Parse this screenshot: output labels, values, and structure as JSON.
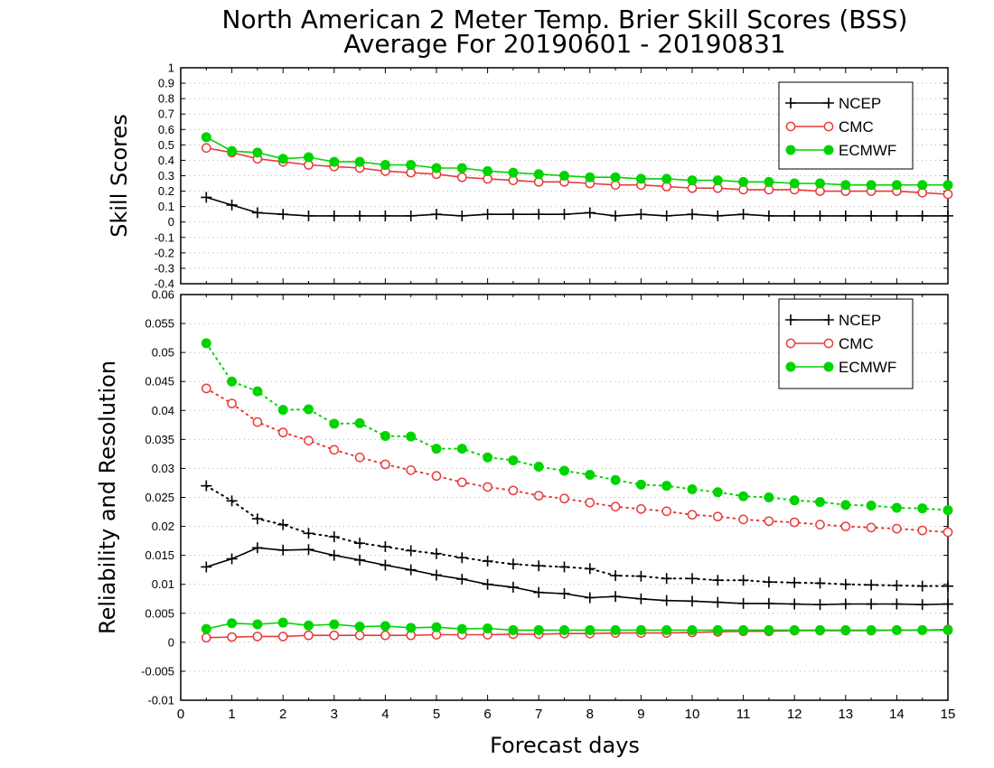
{
  "title_line1": "North American 2 Meter Temp. Brier Skill Scores (BSS)",
  "title_line2": "Average For 20190601 - 20190831",
  "xlabel": "Forecast days",
  "colors": {
    "NCEP": "#000000",
    "CMC": "#e83b3b",
    "ECMWF": "#00d400"
  },
  "chart_data": [
    {
      "type": "line",
      "ylabel": "Skill Scores",
      "xlim": [
        0,
        15
      ],
      "ylim": [
        -0.4,
        1
      ],
      "yticks": [
        "-0.4",
        "-0.3",
        "-0.2",
        "-0.1",
        "0",
        "0.1",
        "0.2",
        "0.3",
        "0.4",
        "0.5",
        "0.6",
        "0.7",
        "0.8",
        "0.9",
        "1"
      ],
      "xticks": [
        "0",
        "1",
        "2",
        "3",
        "4",
        "5",
        "6",
        "7",
        "8",
        "9",
        "10",
        "11",
        "12",
        "13",
        "14",
        "15"
      ],
      "grid": true,
      "legend": "top-right",
      "legend_entries": [
        "NCEP",
        "CMC",
        "ECMWF"
      ],
      "x": [
        0.5,
        1,
        1.5,
        2,
        2.5,
        3,
        3.5,
        4,
        4.5,
        5,
        5.5,
        6,
        6.5,
        7,
        7.5,
        8,
        8.5,
        9,
        9.5,
        10,
        10.5,
        11,
        11.5,
        12,
        12.5,
        13,
        13.5,
        14,
        14.5,
        15
      ],
      "series": [
        {
          "name": "NCEP",
          "style": "solid",
          "marker": "plus",
          "values": [
            0.16,
            0.11,
            0.06,
            0.05,
            0.04,
            0.04,
            0.04,
            0.04,
            0.04,
            0.05,
            0.04,
            0.05,
            0.05,
            0.05,
            0.05,
            0.06,
            0.04,
            0.05,
            0.04,
            0.05,
            0.04,
            0.05,
            0.04,
            0.04,
            0.04,
            0.04,
            0.04,
            0.04,
            0.04,
            0.04
          ]
        },
        {
          "name": "CMC",
          "style": "solid",
          "marker": "open-circle",
          "values": [
            0.48,
            0.45,
            0.41,
            0.39,
            0.37,
            0.36,
            0.35,
            0.33,
            0.32,
            0.31,
            0.29,
            0.28,
            0.27,
            0.26,
            0.26,
            0.25,
            0.24,
            0.24,
            0.23,
            0.22,
            0.22,
            0.21,
            0.21,
            0.21,
            0.2,
            0.2,
            0.2,
            0.2,
            0.19,
            0.18
          ]
        },
        {
          "name": "ECMWF",
          "style": "solid",
          "marker": "filled-circle",
          "values": [
            0.55,
            0.46,
            0.45,
            0.41,
            0.42,
            0.39,
            0.39,
            0.37,
            0.37,
            0.35,
            0.35,
            0.33,
            0.32,
            0.31,
            0.3,
            0.29,
            0.29,
            0.28,
            0.28,
            0.27,
            0.27,
            0.26,
            0.26,
            0.25,
            0.25,
            0.24,
            0.24,
            0.24,
            0.24,
            0.24
          ]
        }
      ]
    },
    {
      "type": "line",
      "ylabel": "Reliability and Resolution",
      "xlim": [
        0,
        15
      ],
      "ylim": [
        -0.01,
        0.06
      ],
      "yticks": [
        "-0.01",
        "-0.005",
        "0",
        "0.005",
        "0.01",
        "0.015",
        "0.02",
        "0.025",
        "0.03",
        "0.035",
        "0.04",
        "0.045",
        "0.05",
        "0.055",
        "0.06"
      ],
      "xticks": [
        "0",
        "1",
        "2",
        "3",
        "4",
        "5",
        "6",
        "7",
        "8",
        "9",
        "10",
        "11",
        "12",
        "13",
        "14",
        "15"
      ],
      "grid": true,
      "legend": "top-right",
      "legend_entries": [
        "NCEP",
        "CMC",
        "ECMWF"
      ],
      "x": [
        0.5,
        1,
        1.5,
        2,
        2.5,
        3,
        3.5,
        4,
        4.5,
        5,
        5.5,
        6,
        6.5,
        7,
        7.5,
        8,
        8.5,
        9,
        9.5,
        10,
        10.5,
        11,
        11.5,
        12,
        12.5,
        13,
        13.5,
        14,
        14.5,
        15
      ],
      "series": [
        {
          "name": "NCEP",
          "style": "dotted",
          "marker": "plus",
          "values": [
            0.027,
            0.0244,
            0.0213,
            0.0203,
            0.0188,
            0.0182,
            0.0171,
            0.0165,
            0.0158,
            0.0153,
            0.0146,
            0.014,
            0.0135,
            0.0132,
            0.013,
            0.0127,
            0.0115,
            0.0114,
            0.011,
            0.011,
            0.0107,
            0.0107,
            0.0104,
            0.0103,
            0.0102,
            0.01,
            0.0099,
            0.0098,
            0.0097,
            0.0097
          ]
        },
        {
          "name": "NCEP",
          "style": "solid",
          "marker": "plus",
          "values": [
            0.013,
            0.0144,
            0.0163,
            0.0159,
            0.016,
            0.015,
            0.0142,
            0.0133,
            0.0125,
            0.0116,
            0.0109,
            0.01,
            0.0095,
            0.0086,
            0.0084,
            0.0077,
            0.0079,
            0.0075,
            0.0072,
            0.0071,
            0.0069,
            0.0067,
            0.0067,
            0.0066,
            0.0065,
            0.0066,
            0.0066,
            0.0066,
            0.0065,
            0.0066
          ]
        },
        {
          "name": "CMC",
          "style": "dotted",
          "marker": "open-circle",
          "values": [
            0.0438,
            0.0412,
            0.038,
            0.0362,
            0.0348,
            0.0332,
            0.0319,
            0.0307,
            0.0297,
            0.0287,
            0.0276,
            0.0268,
            0.0262,
            0.0253,
            0.0248,
            0.0241,
            0.0234,
            0.023,
            0.0226,
            0.022,
            0.0217,
            0.0212,
            0.0209,
            0.0207,
            0.0203,
            0.02,
            0.0198,
            0.0196,
            0.0193,
            0.019
          ]
        },
        {
          "name": "CMC",
          "style": "solid",
          "marker": "open-circle",
          "values": [
            0.0008,
            0.0009,
            0.001,
            0.001,
            0.0012,
            0.0012,
            0.0012,
            0.0012,
            0.0012,
            0.0013,
            0.0013,
            0.0013,
            0.0014,
            0.0014,
            0.0015,
            0.0015,
            0.0016,
            0.0016,
            0.0016,
            0.0017,
            0.0018,
            0.0019,
            0.0019,
            0.002,
            0.002,
            0.002,
            0.002,
            0.0021,
            0.0021,
            0.0022
          ]
        },
        {
          "name": "ECMWF",
          "style": "dotted",
          "marker": "filled-circle",
          "values": [
            0.0516,
            0.045,
            0.0433,
            0.0401,
            0.0402,
            0.0377,
            0.0378,
            0.0356,
            0.0355,
            0.0334,
            0.0334,
            0.0319,
            0.0314,
            0.0303,
            0.0296,
            0.0289,
            0.028,
            0.0272,
            0.027,
            0.0264,
            0.0259,
            0.0252,
            0.025,
            0.0245,
            0.0242,
            0.0237,
            0.0236,
            0.0232,
            0.0231,
            0.0228
          ]
        },
        {
          "name": "ECMWF",
          "style": "solid",
          "marker": "filled-circle",
          "values": [
            0.0023,
            0.0033,
            0.0031,
            0.0034,
            0.0029,
            0.0031,
            0.0027,
            0.0028,
            0.0025,
            0.0026,
            0.0023,
            0.0024,
            0.0021,
            0.0021,
            0.0021,
            0.0021,
            0.0021,
            0.0021,
            0.0021,
            0.0021,
            0.0021,
            0.0021,
            0.0021,
            0.0021,
            0.0021,
            0.0021,
            0.0021,
            0.0021,
            0.0021,
            0.0021
          ]
        }
      ]
    }
  ]
}
